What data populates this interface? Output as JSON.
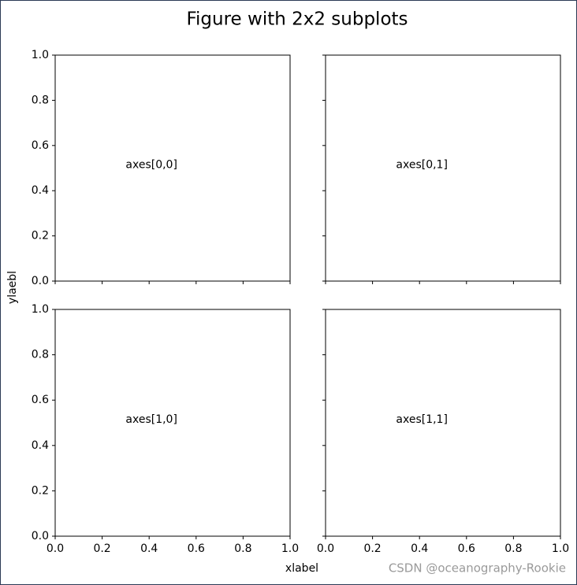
{
  "title": "Figure with 2x2 subplots",
  "xlabel": "xlabel",
  "ylabel": "ylaebl",
  "watermark": "CSDN @oceanography-Rookie",
  "chart_data": [
    {
      "type": "empty",
      "annotation": "axes[0,0]",
      "xlim": [
        0,
        1
      ],
      "ylim": [
        0,
        1
      ],
      "xticks": [
        0,
        0.2,
        0.4,
        0.6,
        0.8,
        1
      ],
      "show_xticklabels": false,
      "yticks": [
        {
          "value": 0,
          "label": "0.0"
        },
        {
          "value": 0.2,
          "label": "0.2"
        },
        {
          "value": 0.4,
          "label": "0.4"
        },
        {
          "value": 0.6,
          "label": "0.6"
        },
        {
          "value": 0.8,
          "label": "0.8"
        },
        {
          "value": 1,
          "label": "1.0"
        }
      ],
      "show_yticklabels": true
    },
    {
      "type": "empty",
      "annotation": "axes[0,1]",
      "xlim": [
        0,
        1
      ],
      "ylim": [
        0,
        1
      ],
      "xticks": [
        0,
        0.2,
        0.4,
        0.6,
        0.8,
        1
      ],
      "show_xticklabels": false,
      "yticks": [
        0,
        0.2,
        0.4,
        0.6,
        0.8,
        1
      ],
      "show_yticklabels": false
    },
    {
      "type": "empty",
      "annotation": "axes[1,0]",
      "xlim": [
        0,
        1
      ],
      "ylim": [
        0,
        1
      ],
      "xticks": [
        {
          "value": 0,
          "label": "0.0"
        },
        {
          "value": 0.2,
          "label": "0.2"
        },
        {
          "value": 0.4,
          "label": "0.4"
        },
        {
          "value": 0.6,
          "label": "0.6"
        },
        {
          "value": 0.8,
          "label": "0.8"
        },
        {
          "value": 1,
          "label": "1.0"
        }
      ],
      "show_xticklabels": true,
      "yticks": [
        {
          "value": 0,
          "label": "0.0"
        },
        {
          "value": 0.2,
          "label": "0.2"
        },
        {
          "value": 0.4,
          "label": "0.4"
        },
        {
          "value": 0.6,
          "label": "0.6"
        },
        {
          "value": 0.8,
          "label": "0.8"
        },
        {
          "value": 1,
          "label": "1.0"
        }
      ],
      "show_yticklabels": true
    },
    {
      "type": "empty",
      "annotation": "axes[1,1]",
      "xlim": [
        0,
        1
      ],
      "ylim": [
        0,
        1
      ],
      "xticks": [
        {
          "value": 0,
          "label": "0.0"
        },
        {
          "value": 0.2,
          "label": "0.2"
        },
        {
          "value": 0.4,
          "label": "0.4"
        },
        {
          "value": 0.6,
          "label": "0.6"
        },
        {
          "value": 0.8,
          "label": "0.8"
        },
        {
          "value": 1,
          "label": "1.0"
        }
      ],
      "show_xticklabels": true,
      "yticks": [
        0,
        0.2,
        0.4,
        0.6,
        0.8,
        1
      ],
      "show_yticklabels": false
    }
  ]
}
